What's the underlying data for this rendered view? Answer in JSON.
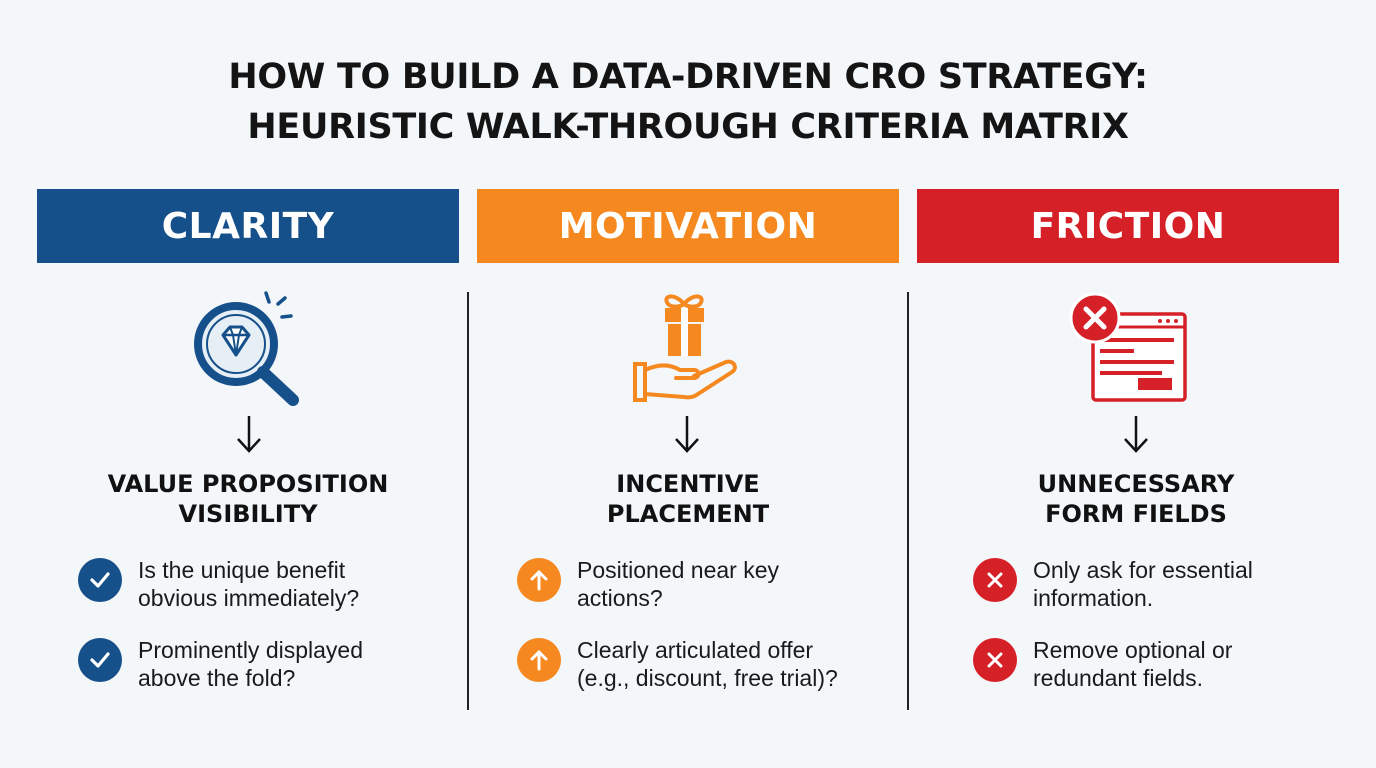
{
  "title": {
    "line1": "HOW TO BUILD A DATA-DRIVEN CRO STRATEGY:",
    "line2": "HEURISTIC WALK-THROUGH CRITERIA MATRIX"
  },
  "colors": {
    "clarity": "#16508a",
    "motivation": "#f5891f",
    "friction": "#d62028",
    "background": "#f3f7fa"
  },
  "columns": [
    {
      "header": "CLARITY",
      "icon": "magnifier-diamond-icon",
      "heading": [
        "VALUE PROPOSITION",
        "VISIBILITY"
      ],
      "bullet_icon": "check-icon",
      "items": [
        {
          "line1": "Is the unique benefit",
          "line2": "obvious immediately?"
        },
        {
          "line1": "Prominently displayed",
          "line2": "above the fold?"
        }
      ]
    },
    {
      "header": "MOTIVATION",
      "icon": "gift-hand-icon",
      "heading": [
        "INCENTIVE",
        "PLACEMENT"
      ],
      "bullet_icon": "up-arrow-icon",
      "items": [
        {
          "line1": "Positioned near key",
          "line2": "actions?"
        },
        {
          "line1": "Clearly articulated offer",
          "line2": "(e.g., discount, free trial)?"
        }
      ]
    },
    {
      "header": "FRICTION",
      "icon": "form-error-icon",
      "heading": [
        "UNNECESSARY",
        "FORM FIELDS"
      ],
      "bullet_icon": "x-icon",
      "items": [
        {
          "line1": "Only ask for essential",
          "line2": "information."
        },
        {
          "line1": "Remove optional or",
          "line2": "redundant fields."
        }
      ]
    }
  ]
}
